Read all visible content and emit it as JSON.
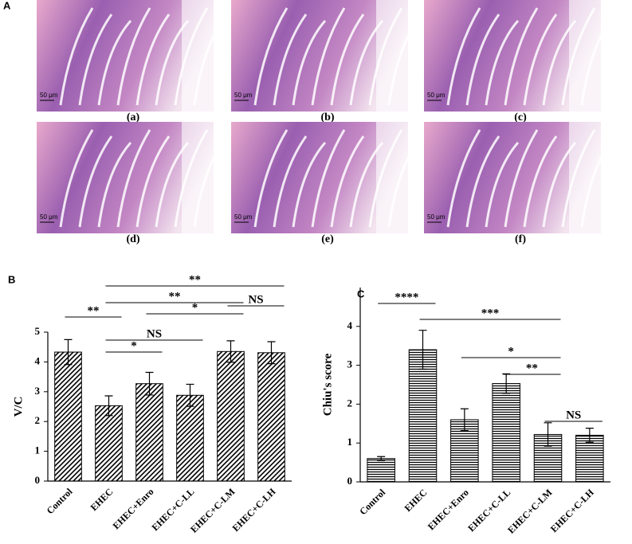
{
  "panel_a": {
    "label": "A",
    "images": [
      {
        "caption": "(a)",
        "scale_bar": "50 μm"
      },
      {
        "caption": "(b)",
        "scale_bar": "50 μm"
      },
      {
        "caption": "(c)",
        "scale_bar": "50 μm"
      },
      {
        "caption": "(d)",
        "scale_bar": "50 μm"
      },
      {
        "caption": "(e)",
        "scale_bar": "50 μm"
      },
      {
        "caption": "(f)",
        "scale_bar": "50 μm"
      }
    ]
  },
  "chart_data": [
    {
      "type": "bar",
      "panel_label": "B",
      "ylabel": "V/C",
      "categories": [
        "Control",
        "EHEC",
        "EHEC+Enro",
        "EHEC+C-LL",
        "EHEC+C-LM",
        "EHEC+C-LH"
      ],
      "values": [
        4.33,
        2.53,
        3.27,
        2.88,
        4.35,
        4.31
      ],
      "errors": [
        0.42,
        0.33,
        0.38,
        0.37,
        0.36,
        0.37
      ],
      "color": "#000000",
      "pattern": "diagonal",
      "ylim": [
        0,
        5
      ],
      "yticks": [
        0,
        1,
        2,
        3,
        4,
        5
      ],
      "brackets": [
        {
          "groups": [
            1,
            5
          ],
          "label": "**"
        },
        {
          "groups": [
            1,
            4
          ],
          "label": "**"
        },
        {
          "groups": [
            0,
            1
          ],
          "label": "**"
        },
        {
          "groups": [
            2,
            4
          ],
          "label": "*"
        },
        {
          "groups": [
            4,
            5
          ],
          "label": "NS"
        },
        {
          "groups": [
            1,
            3
          ],
          "label": "NS"
        },
        {
          "groups": [
            1,
            2
          ],
          "label": "*"
        }
      ]
    },
    {
      "type": "bar",
      "panel_label": "C",
      "ylabel": "Chiu's score",
      "categories": [
        "Control",
        "EHEC",
        "EHEC+Enro",
        "EHEC+C-LL",
        "EHEC+C-LM",
        "EHEC+C-LH"
      ],
      "values": [
        0.6,
        3.4,
        1.6,
        2.53,
        1.22,
        1.2
      ],
      "errors": [
        0.05,
        0.5,
        0.28,
        0.25,
        0.3,
        0.18
      ],
      "color": "#000000",
      "pattern": "horizontal",
      "ylim": [
        0,
        5
      ],
      "yticks": [
        0,
        1,
        2,
        3,
        4
      ],
      "brackets": [
        {
          "groups": [
            0,
            1
          ],
          "label": "****"
        },
        {
          "groups": [
            1,
            4
          ],
          "label": "***"
        },
        {
          "groups": [
            2,
            4
          ],
          "label": "*"
        },
        {
          "groups": [
            3,
            4
          ],
          "label": "**"
        },
        {
          "groups": [
            4,
            5
          ],
          "label": "NS"
        }
      ]
    }
  ]
}
